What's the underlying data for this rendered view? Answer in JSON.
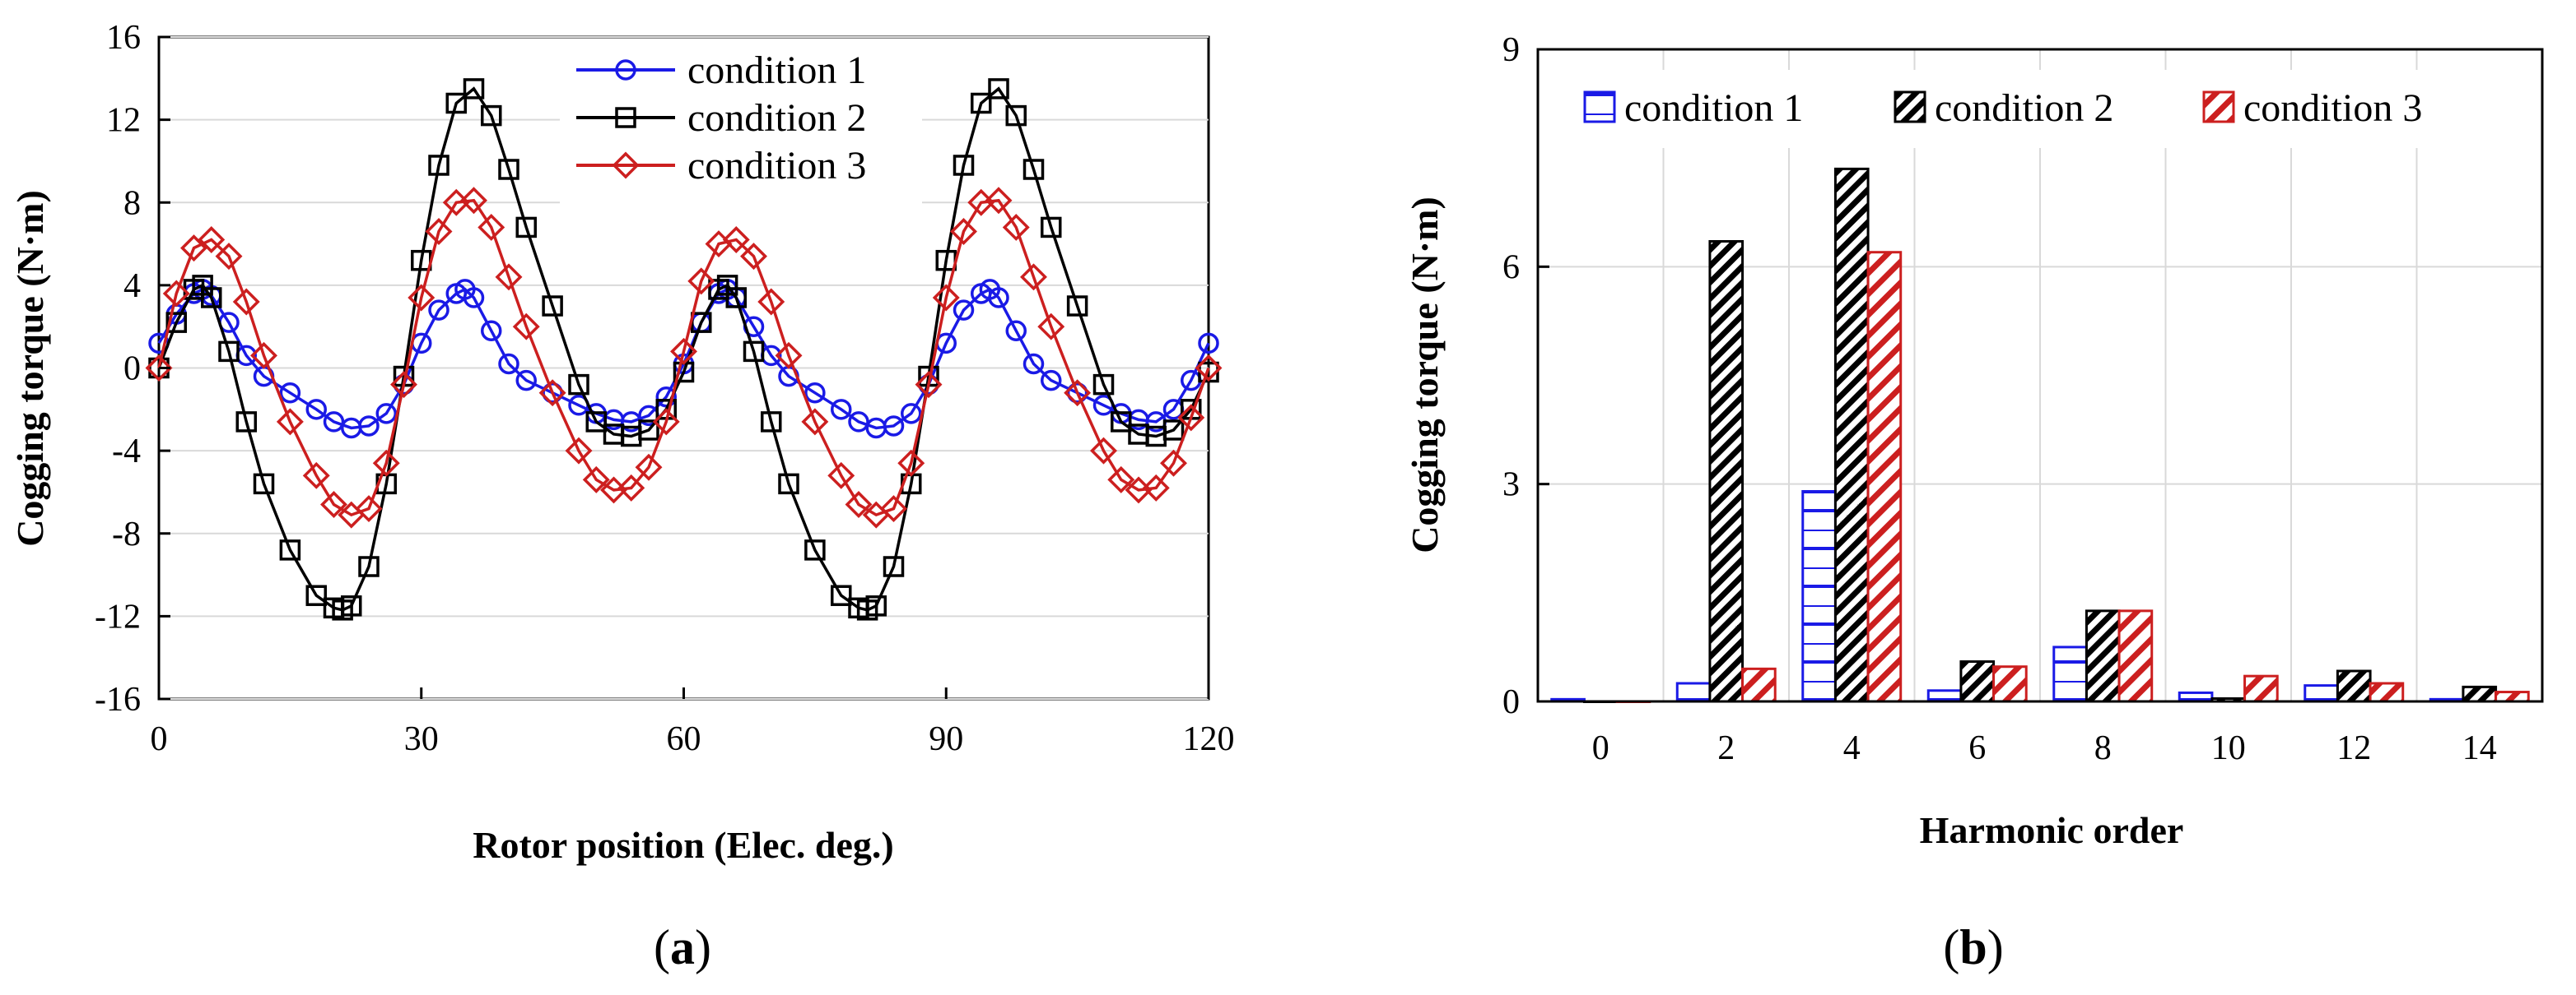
{
  "colors": {
    "condition_1": "#1a1ae6",
    "condition_2": "#000000",
    "condition_3": "#cc1f1f"
  },
  "panel_a": {
    "open": "(",
    "letter": "a",
    "close": ")"
  },
  "panel_b": {
    "open": "(",
    "letter": "b",
    "close": ")"
  },
  "chart_data": [
    {
      "type": "line",
      "title": "",
      "xlabel": "Rotor position (Elec. deg.)",
      "ylabel": "Cogging torque (N·m)",
      "xlim": [
        0,
        120
      ],
      "ylim": [
        -16,
        16
      ],
      "xticks": [
        0,
        30,
        60,
        90,
        120
      ],
      "yticks": [
        -16,
        -12,
        -8,
        -4,
        0,
        4,
        8,
        12,
        16
      ],
      "legend_position": "top-center",
      "series": [
        {
          "name": "condition 1",
          "color_key": "condition_1",
          "marker": "circle",
          "x": [
            0,
            2,
            4,
            5,
            6,
            8,
            10,
            12,
            15,
            18,
            20,
            22,
            24,
            26,
            28,
            30,
            32,
            34,
            35,
            36,
            38,
            40,
            42,
            45,
            48,
            50,
            52,
            54,
            56,
            58,
            60,
            62,
            64,
            65,
            66,
            68,
            70,
            72,
            75,
            78,
            80,
            82,
            84,
            86,
            88,
            90,
            92,
            94,
            95,
            96,
            98,
            100,
            102,
            105,
            108,
            110,
            112,
            114,
            116,
            118,
            120
          ],
          "y": [
            1.2,
            2.6,
            3.6,
            3.8,
            3.5,
            2.2,
            0.6,
            -0.4,
            -1.2,
            -2.0,
            -2.6,
            -2.9,
            -2.8,
            -2.2,
            -0.8,
            1.2,
            2.8,
            3.6,
            3.8,
            3.4,
            1.8,
            0.2,
            -0.6,
            -1.2,
            -1.8,
            -2.2,
            -2.5,
            -2.6,
            -2.3,
            -1.4,
            0.2,
            2.2,
            3.6,
            3.8,
            3.4,
            2.0,
            0.6,
            -0.4,
            -1.2,
            -2.0,
            -2.6,
            -2.9,
            -2.8,
            -2.2,
            -0.8,
            1.2,
            2.8,
            3.6,
            3.8,
            3.4,
            1.8,
            0.2,
            -0.6,
            -1.2,
            -1.8,
            -2.2,
            -2.5,
            -2.6,
            -2.0,
            -0.6,
            1.2
          ]
        },
        {
          "name": "condition 2",
          "color_key": "condition_2",
          "marker": "square",
          "x": [
            0,
            2,
            4,
            5,
            6,
            8,
            10,
            12,
            15,
            18,
            20,
            21,
            22,
            24,
            26,
            28,
            30,
            32,
            34,
            36,
            38,
            40,
            42,
            45,
            48,
            50,
            52,
            54,
            56,
            58,
            60,
            62,
            64,
            65,
            66,
            68,
            70,
            72,
            75,
            78,
            80,
            81,
            82,
            84,
            86,
            88,
            90,
            92,
            94,
            96,
            98,
            100,
            102,
            105,
            108,
            110,
            112,
            114,
            116,
            118,
            120
          ],
          "y": [
            0.0,
            2.2,
            3.8,
            4.0,
            3.4,
            0.8,
            -2.6,
            -5.6,
            -8.8,
            -11.0,
            -11.6,
            -11.7,
            -11.5,
            -9.6,
            -5.6,
            -0.4,
            5.2,
            9.8,
            12.8,
            13.5,
            12.2,
            9.6,
            6.8,
            3.0,
            -0.8,
            -2.6,
            -3.2,
            -3.3,
            -3.0,
            -2.0,
            -0.2,
            2.2,
            3.8,
            4.0,
            3.4,
            0.8,
            -2.6,
            -5.6,
            -8.8,
            -11.0,
            -11.6,
            -11.7,
            -11.5,
            -9.6,
            -5.6,
            -0.4,
            5.2,
            9.8,
            12.8,
            13.5,
            12.2,
            9.6,
            6.8,
            3.0,
            -0.8,
            -2.6,
            -3.2,
            -3.3,
            -3.0,
            -2.0,
            -0.2
          ]
        },
        {
          "name": "condition 3",
          "color_key": "condition_3",
          "marker": "diamond",
          "x": [
            0,
            2,
            4,
            6,
            8,
            10,
            12,
            15,
            18,
            20,
            22,
            24,
            26,
            28,
            30,
            32,
            34,
            36,
            38,
            40,
            42,
            45,
            48,
            50,
            52,
            54,
            56,
            58,
            60,
            62,
            64,
            66,
            68,
            70,
            72,
            75,
            78,
            80,
            82,
            84,
            86,
            88,
            90,
            92,
            94,
            96,
            98,
            100,
            102,
            105,
            108,
            110,
            112,
            114,
            116,
            118,
            120
          ],
          "y": [
            0.0,
            3.6,
            5.8,
            6.2,
            5.4,
            3.2,
            0.6,
            -2.6,
            -5.2,
            -6.6,
            -7.1,
            -6.8,
            -4.6,
            -0.8,
            3.4,
            6.6,
            8.0,
            8.1,
            6.8,
            4.4,
            2.0,
            -1.2,
            -4.0,
            -5.4,
            -5.9,
            -5.8,
            -4.8,
            -2.6,
            0.8,
            4.2,
            6.0,
            6.2,
            5.4,
            3.2,
            0.6,
            -2.6,
            -5.2,
            -6.6,
            -7.1,
            -6.8,
            -4.6,
            -0.8,
            3.4,
            6.6,
            8.0,
            8.1,
            6.8,
            4.4,
            2.0,
            -1.2,
            -4.0,
            -5.4,
            -5.9,
            -5.8,
            -4.6,
            -2.4,
            0.0
          ]
        }
      ]
    },
    {
      "type": "bar",
      "title": "",
      "xlabel": "Harmonic order",
      "ylabel": "Cogging torque (N·m)",
      "ylim": [
        0,
        9
      ],
      "yticks": [
        0,
        3,
        6,
        9
      ],
      "categories": [
        "0",
        "2",
        "4",
        "6",
        "8",
        "10",
        "12",
        "14"
      ],
      "legend_position": "top",
      "series": [
        {
          "name": "condition 1",
          "color_key": "condition_1",
          "pattern": "grid",
          "values": [
            0.03,
            0.25,
            2.9,
            0.15,
            0.75,
            0.12,
            0.22,
            0.03
          ]
        },
        {
          "name": "condition 2",
          "color_key": "condition_2",
          "pattern": "diagonal-dense",
          "values": [
            0.0,
            6.35,
            7.35,
            0.55,
            1.25,
            0.04,
            0.42,
            0.2
          ]
        },
        {
          "name": "condition 3",
          "color_key": "condition_3",
          "pattern": "diagonal",
          "values": [
            0.0,
            0.45,
            6.2,
            0.48,
            1.25,
            0.35,
            0.25,
            0.13
          ]
        }
      ]
    }
  ]
}
